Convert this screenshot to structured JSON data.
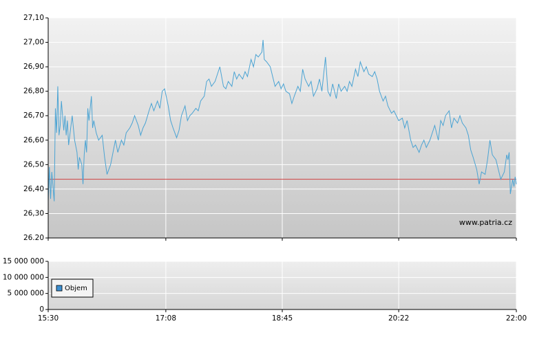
{
  "chart_data": [
    {
      "type": "line",
      "x": [
        "15:30",
        "15:31",
        "15:32",
        "15:33",
        "15:35",
        "15:36",
        "15:37",
        "15:38",
        "15:39",
        "15:40",
        "15:41",
        "15:43",
        "15:44",
        "15:45",
        "15:46",
        "15:47",
        "15:50",
        "15:52",
        "15:54",
        "15:55",
        "15:56",
        "15:58",
        "15:59",
        "16:00",
        "16:01",
        "16:02",
        "16:03",
        "16:04",
        "16:06",
        "16:07",
        "16:08",
        "16:10",
        "16:12",
        "16:15",
        "16:17",
        "16:19",
        "16:22",
        "16:24",
        "16:26",
        "16:28",
        "16:31",
        "16:33",
        "16:35",
        "16:38",
        "16:40",
        "16:42",
        "16:45",
        "16:47",
        "16:49",
        "16:51",
        "16:54",
        "16:56",
        "16:58",
        "17:01",
        "17:03",
        "17:05",
        "17:07",
        "17:10",
        "17:12",
        "17:14",
        "17:17",
        "17:19",
        "17:21",
        "17:24",
        "17:26",
        "17:28",
        "17:30",
        "17:33",
        "17:35",
        "17:37",
        "17:40",
        "17:42",
        "17:44",
        "17:46",
        "17:49",
        "17:51",
        "17:53",
        "17:56",
        "17:58",
        "18:00",
        "18:03",
        "18:05",
        "18:07",
        "18:09",
        "18:12",
        "18:14",
        "18:16",
        "18:19",
        "18:21",
        "18:23",
        "18:25",
        "18:28",
        "18:29",
        "18:30",
        "18:32",
        "18:35",
        "18:37",
        "18:39",
        "18:42",
        "18:44",
        "18:46",
        "18:48",
        "18:51",
        "18:53",
        "18:55",
        "18:58",
        "19:00",
        "19:02",
        "19:04",
        "19:07",
        "19:09",
        "19:11",
        "19:14",
        "19:16",
        "19:18",
        "19:21",
        "19:23",
        "19:25",
        "19:27",
        "19:30",
        "19:32",
        "19:34",
        "19:37",
        "19:39",
        "19:41",
        "19:43",
        "19:46",
        "19:48",
        "19:50",
        "19:53",
        "19:55",
        "19:57",
        "20:00",
        "20:02",
        "20:04",
        "20:06",
        "20:09",
        "20:11",
        "20:13",
        "20:16",
        "20:18",
        "20:20",
        "20:22",
        "20:25",
        "20:27",
        "20:29",
        "20:32",
        "20:34",
        "20:36",
        "20:39",
        "20:41",
        "20:43",
        "20:45",
        "20:48",
        "20:50",
        "20:52",
        "20:55",
        "20:57",
        "20:59",
        "21:01",
        "21:04",
        "21:06",
        "21:08",
        "21:11",
        "21:13",
        "21:15",
        "21:18",
        "21:20",
        "21:22",
        "21:24",
        "21:27",
        "21:29",
        "21:31",
        "21:34",
        "21:36",
        "21:38",
        "21:40",
        "21:43",
        "21:45",
        "21:47",
        "21:50",
        "21:52",
        "21:53",
        "21:54",
        "21:55",
        "21:57",
        "21:58",
        "21:59",
        "22:00"
      ],
      "series": [
        {
          "color": "#4aa3d3",
          "values": [
            26.35,
            26.49,
            26.36,
            26.47,
            26.35,
            26.73,
            26.63,
            26.82,
            26.62,
            26.66,
            26.76,
            26.64,
            26.7,
            26.62,
            26.68,
            26.58,
            26.7,
            26.6,
            26.55,
            26.48,
            26.53,
            26.5,
            26.42,
            26.54,
            26.6,
            26.55,
            26.73,
            26.68,
            26.78,
            26.65,
            26.68,
            26.63,
            26.6,
            26.62,
            26.53,
            26.46,
            26.5,
            26.55,
            26.6,
            26.55,
            26.6,
            26.58,
            26.63,
            26.65,
            26.67,
            26.7,
            26.66,
            26.62,
            26.65,
            26.67,
            26.72,
            26.75,
            26.72,
            26.76,
            26.73,
            26.8,
            26.81,
            26.74,
            26.68,
            26.65,
            26.61,
            26.64,
            26.7,
            26.74,
            26.68,
            26.7,
            26.71,
            26.73,
            26.72,
            26.76,
            26.78,
            26.84,
            26.85,
            26.82,
            26.84,
            26.87,
            26.9,
            26.82,
            26.81,
            26.84,
            26.82,
            26.88,
            26.85,
            26.87,
            26.85,
            26.88,
            26.86,
            26.93,
            26.9,
            26.95,
            26.94,
            26.96,
            27.01,
            26.93,
            26.92,
            26.9,
            26.86,
            26.82,
            26.84,
            26.81,
            26.83,
            26.8,
            26.79,
            26.75,
            26.78,
            26.82,
            26.8,
            26.89,
            26.85,
            26.82,
            26.84,
            26.78,
            26.81,
            26.85,
            26.8,
            26.94,
            26.8,
            26.78,
            26.83,
            26.77,
            26.83,
            26.8,
            26.82,
            26.8,
            26.84,
            26.82,
            26.89,
            26.86,
            26.92,
            26.88,
            26.9,
            26.87,
            26.86,
            26.88,
            26.85,
            26.8,
            26.76,
            26.78,
            26.74,
            26.71,
            26.72,
            26.7,
            26.68,
            26.69,
            26.65,
            26.68,
            26.6,
            26.57,
            26.58,
            26.55,
            26.58,
            26.6,
            26.57,
            26.6,
            26.63,
            26.66,
            26.6,
            26.68,
            26.66,
            26.7,
            26.72,
            26.65,
            26.69,
            26.67,
            26.7,
            26.67,
            26.65,
            26.62,
            26.56,
            26.53,
            26.48,
            26.42,
            26.47,
            26.46,
            26.52,
            26.6,
            26.54,
            26.52,
            26.48,
            26.44,
            26.47,
            26.54,
            26.52,
            26.55,
            26.38,
            26.44,
            26.41,
            26.45,
            26.42
          ]
        }
      ],
      "reference_line": {
        "value": 26.44,
        "color": "#d04040"
      },
      "xlim": [
        "15:30",
        "22:00"
      ],
      "xticks": [
        "15:30",
        "17:08",
        "18:45",
        "20:22",
        "22:00"
      ],
      "ylim": [
        26.2,
        27.1
      ],
      "yticks": [
        {
          "value": 26.2,
          "label": "26.20"
        },
        {
          "value": 26.3,
          "label": "26,30"
        },
        {
          "value": 26.4,
          "label": "26,40"
        },
        {
          "value": 26.5,
          "label": "26,50"
        },
        {
          "value": 26.6,
          "label": "26,60"
        },
        {
          "value": 26.7,
          "label": "26,70"
        },
        {
          "value": 26.8,
          "label": "26,80"
        },
        {
          "value": 26.9,
          "label": "26,90"
        },
        {
          "value": 27.0,
          "label": "27,00"
        },
        {
          "value": 27.1,
          "label": "27,10"
        }
      ],
      "grid": true,
      "annotation": "www.patria.cz"
    },
    {
      "type": "bar",
      "series": [
        {
          "name": "Objem",
          "color": "#3d8fd0"
        }
      ],
      "xlim": [
        "15:30",
        "22:00"
      ],
      "xticks": [
        "15:30",
        "17:08",
        "18:45",
        "20:22",
        "22:00"
      ],
      "ylim": [
        0,
        15000000
      ],
      "yticks": [
        0,
        {
          "value": 5000000,
          "label": "5 000 000"
        },
        {
          "value": 10000000,
          "label": "10 000 000"
        },
        {
          "value": 15000000,
          "label": "15 000 000"
        }
      ],
      "grid": true,
      "legend": "lower left"
    }
  ]
}
